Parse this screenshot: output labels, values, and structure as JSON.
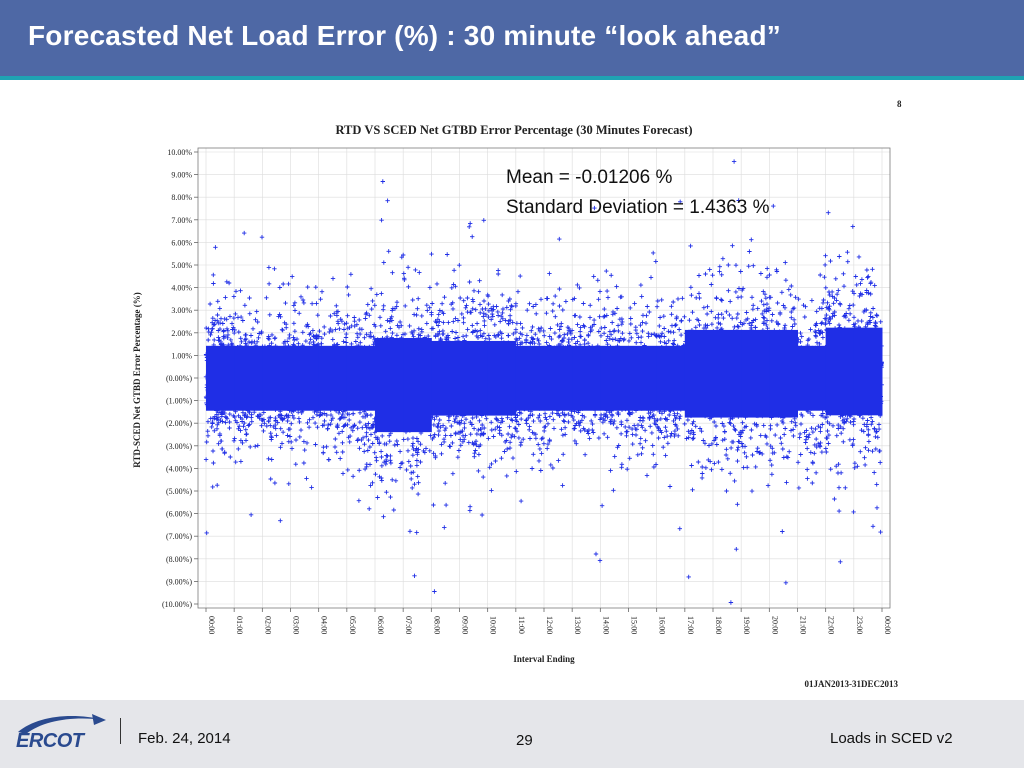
{
  "slide": {
    "title": "Forecasted Net Load Error (%) : 30 minute “look ahead”",
    "corner_number": "8"
  },
  "footer": {
    "logo_text": "ERCOT",
    "date": "Feb. 24, 2014",
    "page_number": "29",
    "right_text": "Loads in SCED v2"
  },
  "colors": {
    "title_bar": "#4e68a5",
    "accent_stripe": "#1ea3b3",
    "points": "#1f2ee6"
  },
  "chart_data": {
    "type": "scatter",
    "title": "RTD VS SCED Net GTBD Error Percentage (30 Minutes Forecast)",
    "xlabel": "Interval Ending",
    "ylabel": "RTD-SCED Net GTBD Error Percentage (%)",
    "date_range": "01JAN2013-31DEC2013",
    "marker": "+",
    "x_tick_labels": [
      "00:00",
      "01:00",
      "02:00",
      "03:00",
      "04:00",
      "05:00",
      "06:00",
      "07:00",
      "08:00",
      "09:00",
      "10:00",
      "11:00",
      "12:00",
      "13:00",
      "14:00",
      "15:00",
      "16:00",
      "17:00",
      "18:00",
      "19:00",
      "20:00",
      "21:00",
      "22:00",
      "23:00",
      "00:00"
    ],
    "y_tick_labels": [
      "10.00%",
      "9.00%",
      "8.00%",
      "7.00%",
      "6.00%",
      "5.00%",
      "4.00%",
      "3.00%",
      "2.00%",
      "1.00%",
      "(0.00%)",
      "(1.00%)",
      "(2.00%)",
      "(3.00%)",
      "(4.00%)",
      "(5.00%)",
      "(6.00%)",
      "(7.00%)",
      "(8.00%)",
      "(9.00%)",
      "(10.00%)"
    ],
    "y_tick_values": [
      10,
      9,
      8,
      7,
      6,
      5,
      4,
      3,
      2,
      1,
      0,
      -1,
      -2,
      -3,
      -4,
      -5,
      -6,
      -7,
      -8,
      -9,
      -10
    ],
    "ylim": [
      -10,
      10
    ],
    "xlim_hours": [
      0,
      24
    ],
    "grid": true,
    "annotations": [
      "Mean = -0.01206 %",
      "Standard Deviation = 1.4363 %"
    ],
    "stats": {
      "mean_pct": -0.01206,
      "std_dev_pct": 1.4363
    }
  }
}
